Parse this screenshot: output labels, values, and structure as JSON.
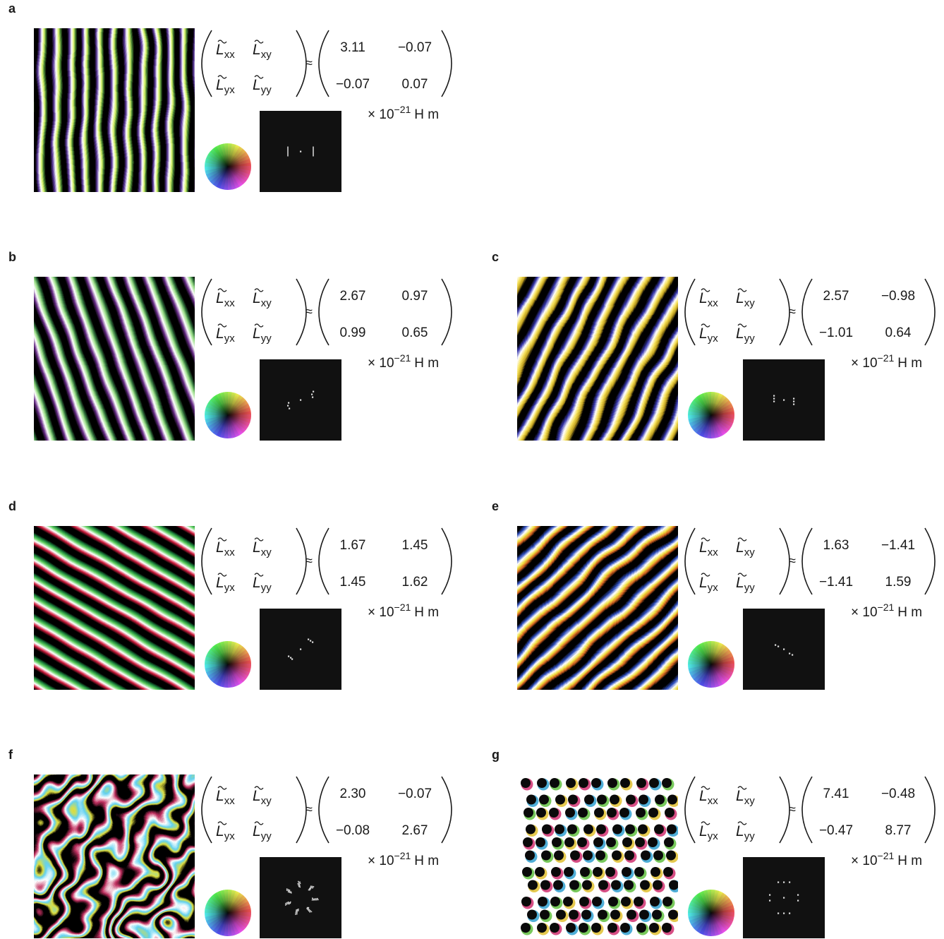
{
  "panels": [
    {
      "label": "a",
      "matrix": [
        [
          "3.11",
          "−0.07"
        ],
        [
          "−0.07",
          "0.07"
        ]
      ]
    },
    {
      "label": "b",
      "matrix": [
        [
          "2.67",
          "0.97"
        ],
        [
          "0.99",
          "0.65"
        ]
      ]
    },
    {
      "label": "c",
      "matrix": [
        [
          "2.57",
          "−0.98"
        ],
        [
          "−1.01",
          "0.64"
        ]
      ]
    },
    {
      "label": "d",
      "matrix": [
        [
          "1.67",
          "1.45"
        ],
        [
          "1.45",
          "1.62"
        ]
      ]
    },
    {
      "label": "e",
      "matrix": [
        [
          "1.63",
          "−1.41"
        ],
        [
          "−1.41",
          "1.59"
        ]
      ]
    },
    {
      "label": "f",
      "matrix": [
        [
          "2.30",
          "−0.07"
        ],
        [
          "−0.08",
          "2.67"
        ]
      ]
    },
    {
      "label": "g",
      "matrix": [
        [
          "7.41",
          "−0.48"
        ],
        [
          "−0.47",
          "8.77"
        ]
      ]
    }
  ],
  "notation": {
    "symbol": "L",
    "subscripts": [
      [
        "xx",
        "xy"
      ],
      [
        "yx",
        "yy"
      ]
    ],
    "approx": "≈",
    "unit": {
      "base": "× 10",
      "exponent": "−21",
      "suffix": "H m"
    }
  }
}
